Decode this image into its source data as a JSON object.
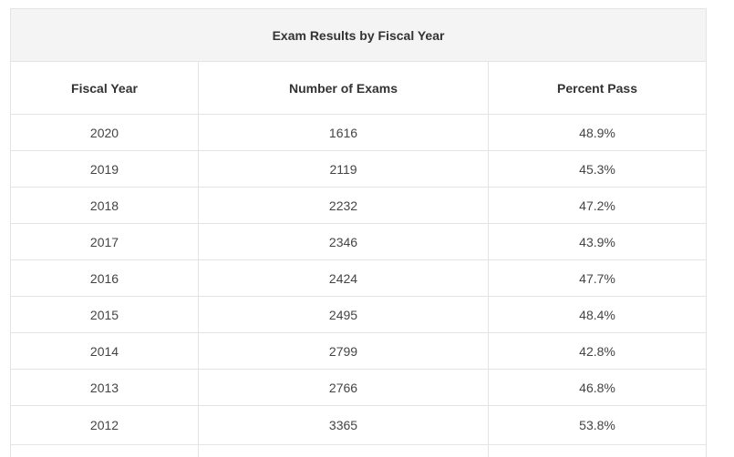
{
  "table": {
    "caption": "Exam Results by Fiscal Year",
    "headers": [
      "Fiscal Year",
      "Number of Exams",
      "Percent Pass"
    ],
    "rows": [
      {
        "year": "2020",
        "exams": "1616",
        "pass": "48.9%"
      },
      {
        "year": "2019",
        "exams": "2119",
        "pass": "45.3%"
      },
      {
        "year": "2018",
        "exams": "2232",
        "pass": "47.2%"
      },
      {
        "year": "2017",
        "exams": "2346",
        "pass": "43.9%"
      },
      {
        "year": "2016",
        "exams": "2424",
        "pass": "47.7%"
      },
      {
        "year": "2015",
        "exams": "2495",
        "pass": "48.4%"
      },
      {
        "year": "2014",
        "exams": "2799",
        "pass": "42.8%"
      },
      {
        "year": "2013",
        "exams": "2766",
        "pass": "46.8%"
      },
      {
        "year": "2012",
        "exams": "3365",
        "pass": "53.8%"
      }
    ]
  }
}
